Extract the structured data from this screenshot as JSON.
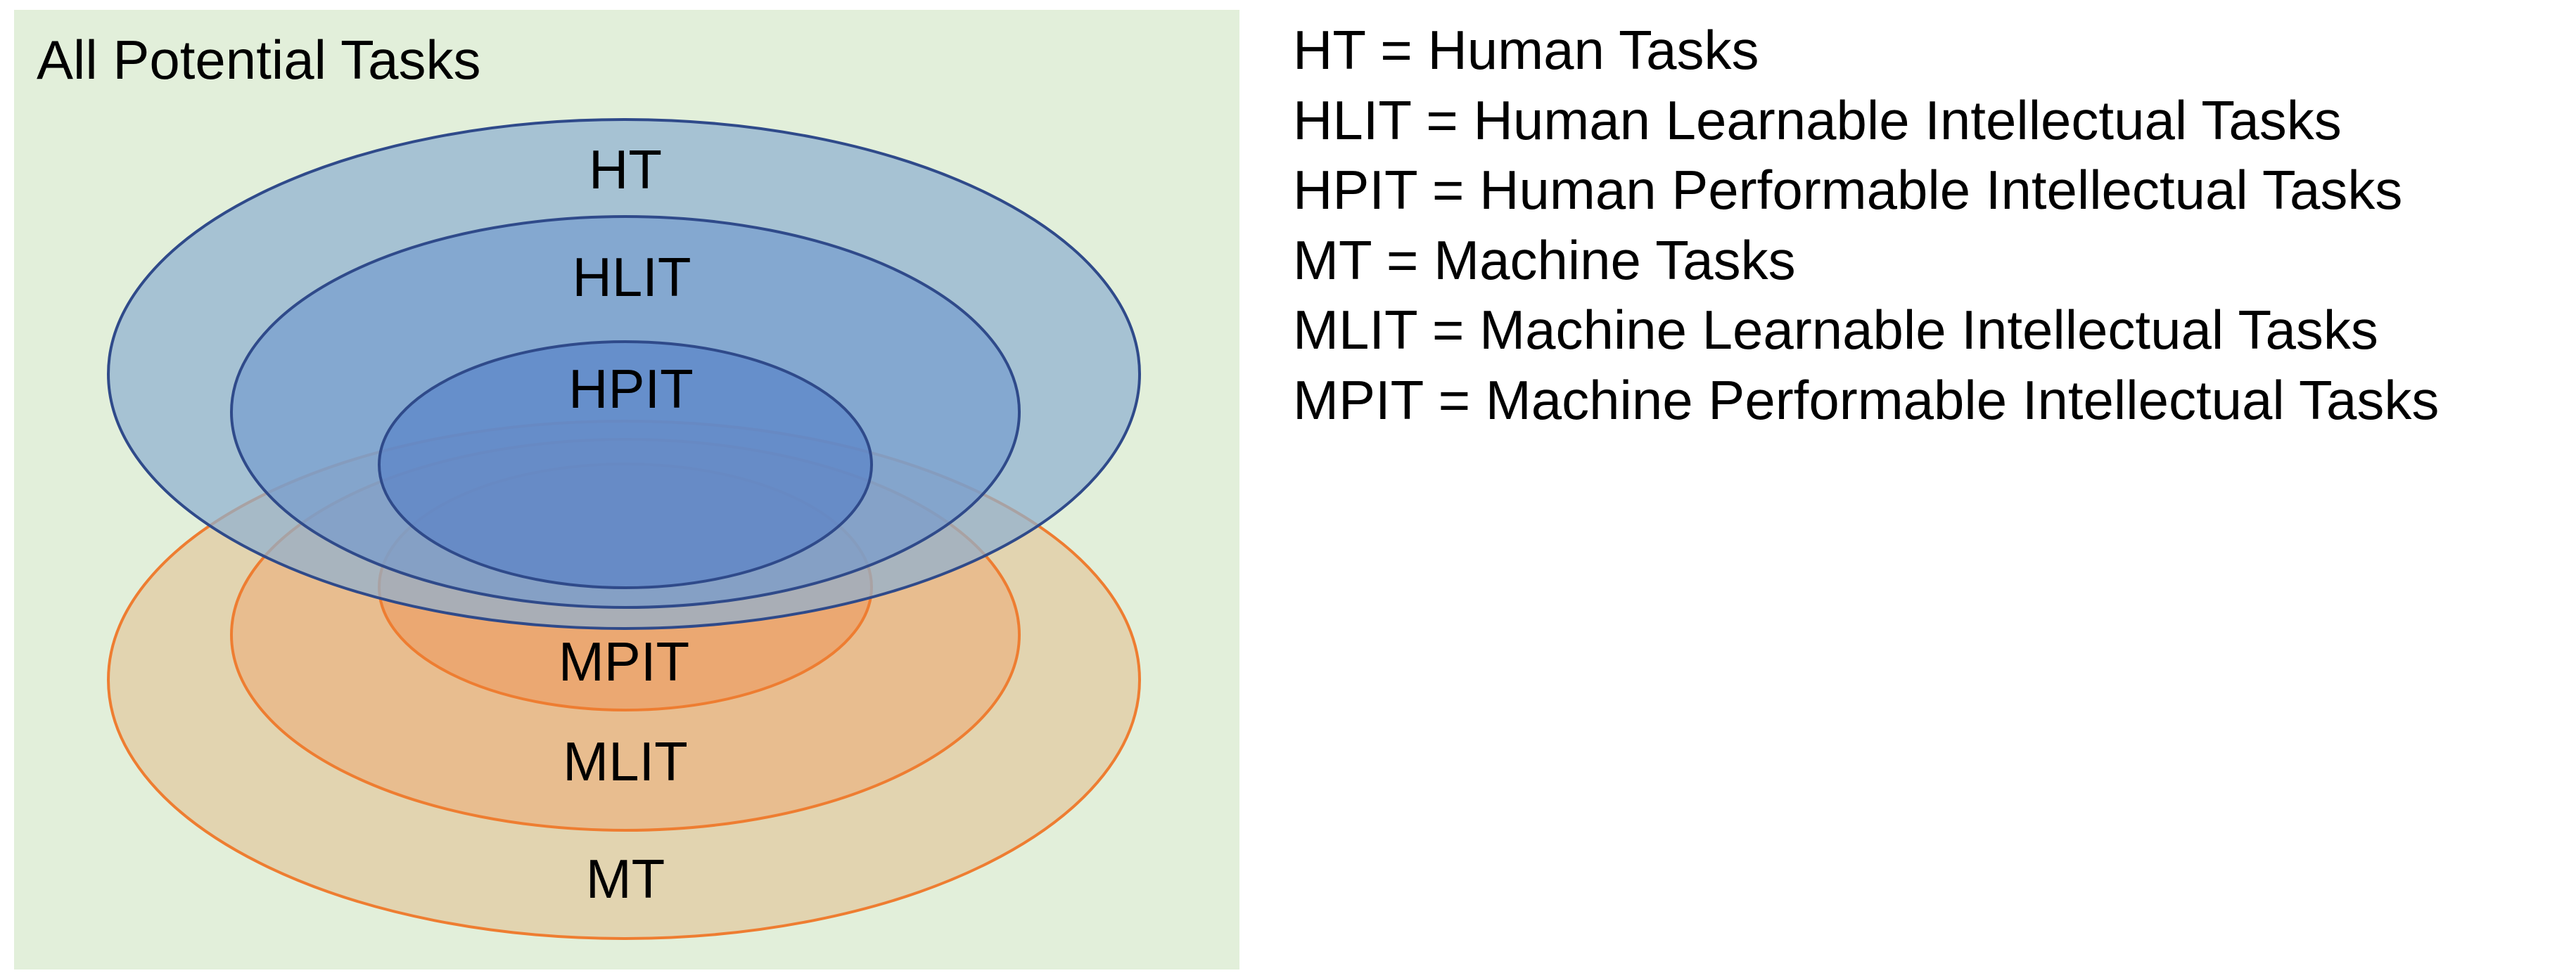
{
  "diagram": {
    "title": "All Potential Tasks",
    "colors": {
      "background": "#e2efda",
      "human_outer_fill": "#a2bcd3",
      "human_mid_fill": "#7c9fcf",
      "human_inner_fill": "#5f87c8",
      "human_stroke": "#2f4a8a",
      "machine_outer_fill": "#e2d4b0",
      "machine_mid_fill": "#e8bd8f",
      "machine_inner_fill": "#eba872",
      "machine_stroke": "#ee7d31"
    },
    "sets": [
      {
        "id": "ht",
        "label": "HT"
      },
      {
        "id": "hlit",
        "label": "HLIT"
      },
      {
        "id": "hpit",
        "label": "HPIT"
      },
      {
        "id": "mt",
        "label": "MT"
      },
      {
        "id": "mlit",
        "label": "MLIT"
      },
      {
        "id": "mpit",
        "label": "MPIT"
      }
    ]
  },
  "legend": {
    "items": [
      "HT = Human Tasks",
      "HLIT = Human Learnable Intellectual Tasks",
      "HPIT = Human Performable Intellectual Tasks",
      "MT = Machine Tasks",
      "MLIT = Machine Learnable Intellectual Tasks",
      "MPIT = Machine Performable Intellectual Tasks"
    ]
  }
}
